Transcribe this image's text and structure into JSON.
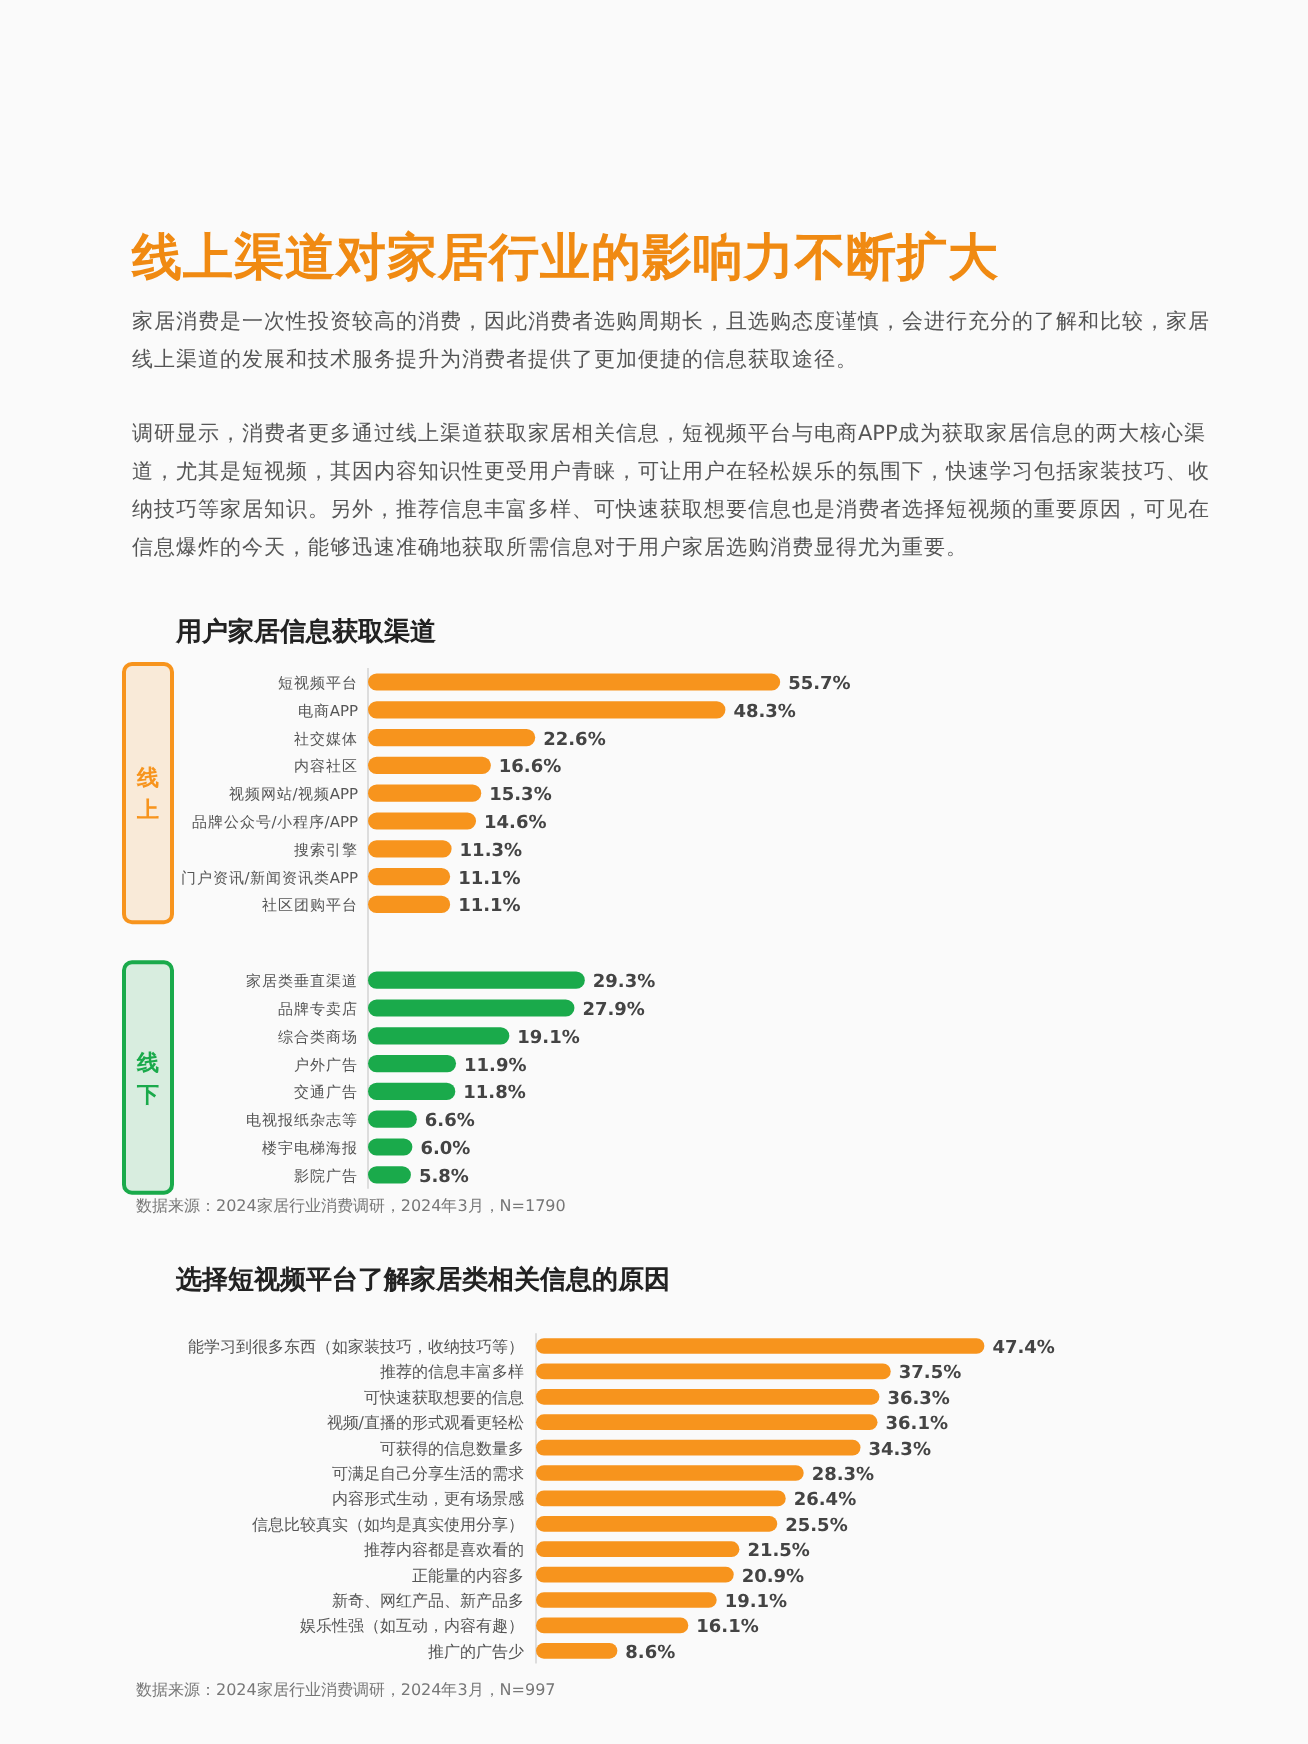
{
  "chart_data": [
    {
      "type": "other",
      "title": "线上渠道对家居行业的影响力不断扩大",
      "annotations": [
        "家居消费是一次性投资较高的消费，因此消费者选购周期长，且选购态度谨慎，会进行充分的了解和比较，家居线上渠道的发展和技术服务提升为消费者提供了更加便捷的信息获取途径。",
        "调研显示，消费者更多通过线上渠道获取家居相关信息，短视频平台与电商APP成为获取家居信息的两大核心渠道，尤其是短视频，其因内容知识性更受用户青睐，可让用户在轻松娱乐的氛围下，快速学习包括家装技巧、收纳技巧等家居知识。另外，推荐信息丰富多样、可快速获取想要信息也是消费者选择短视频的重要原因，可见在信息爆炸的今天，能够迅速准确地获取所需信息对于用户家居选购消费显得尤为重要。"
      ]
    },
    {
      "type": "bar",
      "orientation": "horizontal",
      "title": "用户家居信息获取渠道",
      "categories": [
        "短视频平台",
        "电商APP",
        "社交媒体",
        "内容社区",
        "视频网站/视频APP",
        "品牌公众号/小程序/APP",
        "搜索引擎",
        "门户资讯/新闻资讯类APP",
        "社区团购平台",
        "家居类垂直渠道",
        "品牌专卖店",
        "综合类商场",
        "户外广告",
        "交通广告",
        "电视报纸杂志等",
        "楼宇电梯海报",
        "影院广告"
      ],
      "series": [
        {
          "name": "线上",
          "color": "#f7941d",
          "values": [
            55.7,
            48.3,
            22.6,
            16.6,
            15.3,
            14.6,
            11.3,
            11.1,
            11.1,
            null,
            null,
            null,
            null,
            null,
            null,
            null,
            null
          ],
          "value_labels": [
            "55.7%",
            "48.3%",
            "22.6%",
            "16.6%",
            "15.3%",
            "14.6%",
            "11.3%",
            "11.1%",
            "11.1%",
            null,
            null,
            null,
            null,
            null,
            null,
            null,
            null
          ]
        },
        {
          "name": "线下",
          "color": "#1aaa4b",
          "values": [
            null,
            null,
            null,
            null,
            null,
            null,
            null,
            null,
            null,
            29.3,
            27.9,
            19.1,
            11.9,
            11.8,
            6.6,
            6.0,
            5.8
          ],
          "value_labels": [
            null,
            null,
            null,
            null,
            null,
            null,
            null,
            null,
            null,
            "29.3%",
            "27.9%",
            "19.1%",
            "11.9%",
            "11.8%",
            "6.6%",
            "6.0%",
            "5.8%"
          ]
        }
      ],
      "annotations": [
        "数据来源：2024家居行业消费调研，2024年3月，N=1790"
      ]
    },
    {
      "type": "bar",
      "orientation": "horizontal",
      "title": "选择短视频平台了解家居类相关信息的原因",
      "categories": [
        "能学习到很多东西（如家装技巧，收纳技巧等）",
        "推荐的信息丰富多样",
        "可快速获取想要的信息",
        "视频/直播的形式观看更轻松",
        "可获得的信息数量多",
        "可满足自己分享生活的需求",
        "内容形式生动，更有场景感",
        "信息比较真实（如均是真实使用分享）",
        "推荐内容都是喜欢看的",
        "正能量的内容多",
        "新奇、网红产品、新产品多",
        "娱乐性强（如互动，内容有趣）",
        "推广的广告少"
      ],
      "series": [
        {
          "color": "#f7941d",
          "values": [
            47.4,
            37.5,
            36.3,
            36.1,
            34.3,
            28.3,
            26.4,
            25.5,
            21.5,
            20.9,
            19.1,
            16.1,
            8.6
          ],
          "value_labels": [
            "47.4%",
            "37.5%",
            "36.3%",
            "36.1%",
            "34.3%",
            "28.3%",
            "26.4%",
            "25.5%",
            "21.5%",
            "20.9%",
            "19.1%",
            "16.1%",
            "8.6%"
          ]
        }
      ],
      "annotations": [
        "数据来源：2024家居行业消费调研，2024年3月，N=997"
      ]
    }
  ]
}
